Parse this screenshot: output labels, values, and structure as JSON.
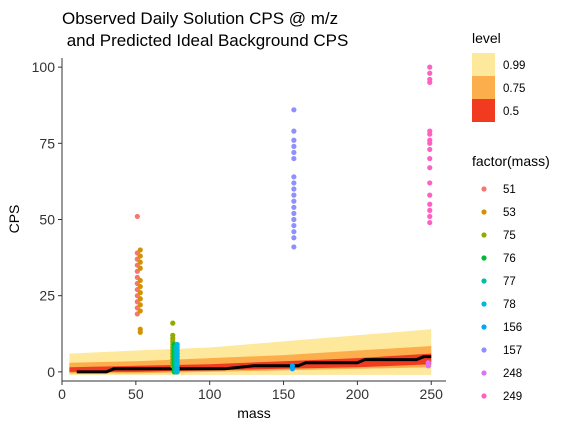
{
  "chart_data": {
    "type": "scatter",
    "title": [
      "Observed Daily Solution CPS @ m/z",
      " and Predicted Ideal Background CPS"
    ],
    "xlabel": "mass",
    "ylabel": "CPS",
    "xlim": [
      0,
      260
    ],
    "ylim": [
      -3,
      103
    ],
    "xticks": [
      0,
      50,
      100,
      150,
      200,
      250
    ],
    "yticks": [
      0,
      25,
      50,
      75,
      100
    ],
    "grid": false,
    "legends": {
      "level": {
        "title": "level",
        "entries": [
          {
            "label": "0.99",
            "color": "#FEE89C"
          },
          {
            "label": "0.75",
            "color": "#FDAE4C"
          },
          {
            "label": "0.5",
            "color": "#F03B20"
          }
        ]
      },
      "mass": {
        "title": "factor(mass)",
        "entries": [
          {
            "label": "51",
            "color": "#F8766D"
          },
          {
            "label": "53",
            "color": "#D39200"
          },
          {
            "label": "75",
            "color": "#93AA00"
          },
          {
            "label": "76",
            "color": "#00BA38"
          },
          {
            "label": "77",
            "color": "#00C19F"
          },
          {
            "label": "78",
            "color": "#00B9E3"
          },
          {
            "label": "156",
            "color": "#00A5FF"
          },
          {
            "label": "157",
            "color": "#8F8FFF"
          },
          {
            "label": "248",
            "color": "#DB72FB"
          },
          {
            "label": "249",
            "color": "#FF61C3"
          }
        ]
      }
    },
    "bands": {
      "x": [
        5,
        50,
        100,
        150,
        200,
        250
      ],
      "level_0.99": {
        "upper": [
          6,
          7,
          8,
          10,
          12,
          14
        ],
        "lower": [
          -1,
          -1,
          -1,
          -1,
          -1,
          -1
        ]
      },
      "level_0.75": {
        "upper": [
          3,
          3.5,
          4.5,
          5.5,
          7,
          8.5
        ],
        "lower": [
          -0.5,
          -0.5,
          0,
          0.5,
          1,
          1.5
        ]
      },
      "level_0.5": {
        "upper": [
          1.5,
          2,
          2.5,
          3.5,
          4.5,
          6
        ],
        "lower": [
          0,
          0,
          0.5,
          1,
          1.5,
          2.5
        ]
      }
    },
    "predicted_line": {
      "color": "#000000",
      "x": [
        10,
        30,
        35,
        50,
        75,
        110,
        130,
        160,
        165,
        200,
        205,
        240,
        245,
        250
      ],
      "y": [
        0,
        0,
        1,
        1,
        1,
        1,
        2,
        2,
        3,
        3,
        4,
        4,
        5,
        5
      ]
    },
    "series": [
      {
        "name": "51",
        "x": 51,
        "values": [
          51,
          39,
          37,
          35,
          33,
          31,
          29,
          27,
          25,
          23,
          21,
          19
        ]
      },
      {
        "name": "53",
        "x": 53,
        "values": [
          40,
          38,
          36,
          34,
          30,
          28,
          26,
          24,
          22,
          20,
          14,
          13
        ]
      },
      {
        "name": "75",
        "x": 75,
        "values": [
          16,
          12,
          11,
          10,
          9,
          8,
          7,
          6,
          5,
          4,
          3,
          2
        ]
      },
      {
        "name": "76",
        "x": 76,
        "values": [
          9,
          8,
          7,
          6,
          5,
          4,
          3,
          2,
          1,
          0
        ]
      },
      {
        "name": "77",
        "x": 77,
        "values": [
          8,
          7,
          6,
          5,
          4,
          3,
          2,
          1,
          0
        ]
      },
      {
        "name": "78",
        "x": 78,
        "values": [
          9,
          8,
          7,
          6,
          5,
          4,
          3,
          2,
          1,
          0
        ]
      },
      {
        "name": "156",
        "x": 156,
        "values": [
          2,
          1
        ]
      },
      {
        "name": "157",
        "x": 157,
        "values": [
          86,
          79,
          76,
          74,
          72,
          70,
          64,
          62,
          60,
          58,
          56,
          54,
          52,
          50,
          48,
          46,
          44,
          41
        ]
      },
      {
        "name": "248",
        "x": 248,
        "values": [
          3,
          2
        ]
      },
      {
        "name": "249",
        "x": 249,
        "values": [
          100,
          98,
          96,
          95,
          79,
          78,
          76,
          75,
          73,
          70,
          67,
          62,
          58,
          55,
          53,
          51,
          49
        ]
      }
    ]
  }
}
